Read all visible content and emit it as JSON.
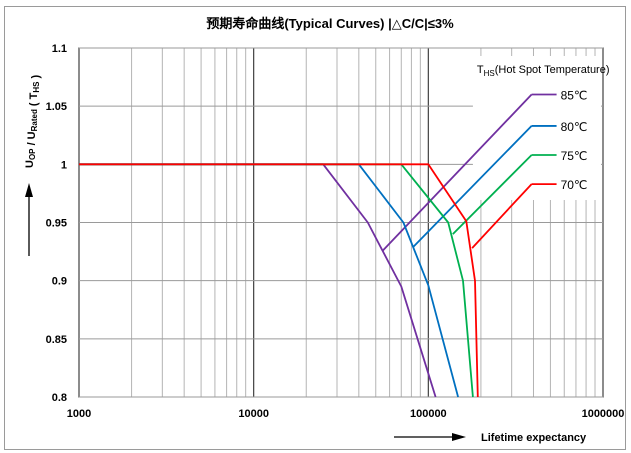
{
  "chart_data": {
    "type": "line",
    "title": "预期寿命曲线(Typical Curves)  |△C/C|≤3%",
    "xlabel": "Lifetime expectancy",
    "ylabel": "U_OP / U_Rated ( T_HS )",
    "ylabel_parts": {
      "u1": "U",
      "s1": "OP",
      "mid": " / U",
      "s2": "Rated",
      "open": " ( T",
      "s3": "HS",
      "close": " )"
    },
    "x_scale": "log",
    "xlim": [
      1000,
      1000000
    ],
    "ylim": [
      0.8,
      1.1
    ],
    "x_ticks": [
      1000,
      10000,
      100000,
      1000000
    ],
    "x_tick_labels": [
      "1000",
      "10000",
      "100000",
      "1000000"
    ],
    "y_ticks": [
      0.8,
      0.85,
      0.9,
      0.95,
      1,
      1.05,
      1.1
    ],
    "y_tick_labels": [
      "0.8",
      "0.85",
      "0.9",
      "0.95",
      "1",
      "1.05",
      "1.1"
    ],
    "grid": true,
    "legend_note": {
      "t": "T",
      "sub": "HS",
      "rest": "(Hot Spot Temperature)"
    },
    "series": [
      {
        "name": "85℃",
        "color": "#7030A0",
        "x": [
          1000,
          25000,
          45000,
          70000,
          110000
        ],
        "y": [
          1,
          1,
          0.95,
          0.895,
          0.8
        ],
        "branch": {
          "x": [
            55000,
            390000
          ],
          "y": [
            0.926,
            1.06
          ]
        }
      },
      {
        "name": "80℃",
        "color": "#0070C0",
        "x": [
          1000,
          40000,
          72000,
          100000,
          148000
        ],
        "y": [
          1,
          1,
          0.95,
          0.896,
          0.8
        ],
        "branch": {
          "x": [
            82000,
            390000
          ],
          "y": [
            0.929,
            1.033
          ]
        }
      },
      {
        "name": "75℃",
        "color": "#00B050",
        "x": [
          1000,
          70000,
          130000,
          158000,
          180000
        ],
        "y": [
          1,
          1,
          0.95,
          0.9,
          0.8
        ],
        "branch": {
          "x": [
            138000,
            390000
          ],
          "y": [
            0.94,
            1.008
          ]
        }
      },
      {
        "name": "70℃",
        "color": "#FF0000",
        "x": [
          1000,
          100000,
          165000,
          185000,
          192000
        ],
        "y": [
          1,
          1,
          0.951,
          0.9,
          0.8
        ],
        "branch": {
          "x": [
            178000,
            390000
          ],
          "y": [
            0.928,
            0.983
          ]
        }
      }
    ]
  }
}
